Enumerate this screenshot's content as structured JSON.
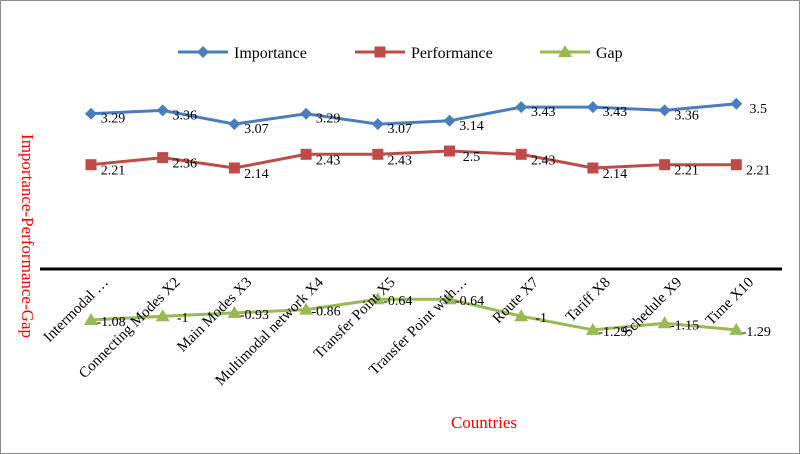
{
  "chart_data": {
    "type": "line",
    "title": "",
    "xlabel": "Countries",
    "ylabel": "Importance-Performance-Gap",
    "categories": [
      "Intermodal …",
      "Connecting Modes X2",
      "Main Modes X3",
      "Multimodal network X4",
      "Transfer Point X5",
      "Transfer Point with…",
      "Route X7",
      "Tariff X8",
      "Schedule X9",
      "Time X10"
    ],
    "series": [
      {
        "name": "Importance",
        "color": "#4a7ebb",
        "marker": "diamond",
        "values": [
          3.29,
          3.36,
          3.07,
          3.29,
          3.07,
          3.14,
          3.43,
          3.43,
          3.36,
          3.5
        ],
        "labels": [
          "3.29",
          "3.36",
          "3.07",
          "3.29",
          "3.07",
          "3.14",
          "3.43",
          "3.43",
          "3.36",
          "3.5"
        ]
      },
      {
        "name": "Performance",
        "color": "#be4b48",
        "marker": "square",
        "values": [
          2.21,
          2.36,
          2.14,
          2.43,
          2.43,
          2.5,
          2.43,
          2.14,
          2.21,
          2.21
        ],
        "labels": [
          "2.21",
          "2.36",
          "2.14",
          "2.43",
          "2.43",
          "2.5",
          "2.43",
          "2.14",
          "2.21",
          "2.21"
        ]
      },
      {
        "name": "Gap",
        "color": "#98b954",
        "marker": "triangle",
        "values": [
          -1.08,
          -1.0,
          -0.93,
          -0.86,
          -0.64,
          -0.64,
          -1.0,
          -1.29,
          -1.15,
          -1.29
        ],
        "labels": [
          "-1.08",
          "-1",
          "-0.93",
          "-0.86",
          "-0.64",
          "-0.64",
          "-1",
          "-1.29",
          "-1.15",
          "-1.29"
        ]
      }
    ],
    "ylim": [
      -2,
      4
    ],
    "grid": false,
    "legend": "top-center"
  }
}
